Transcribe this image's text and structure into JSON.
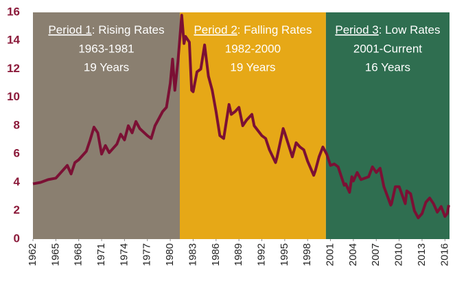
{
  "chart_data": {
    "type": "line",
    "x": [
      1962,
      1963,
      1964,
      1965,
      1966,
      1966.5,
      1967,
      1967.5,
      1968,
      1969,
      1969.5,
      1970,
      1970.5,
      1971,
      1971.5,
      1972,
      1973,
      1973.5,
      1974,
      1974.5,
      1975,
      1975.5,
      1976,
      1977,
      1977.5,
      1978,
      1979,
      1979.5,
      1980,
      1980.3,
      1980.6,
      1981,
      1981.5,
      1981.8,
      1982,
      1982.5,
      1982.8,
      1983,
      1983.5,
      1984,
      1984.5,
      1985,
      1985.5,
      1986,
      1986.5,
      1987,
      1987.7,
      1988,
      1988.5,
      1989,
      1989.5,
      1990,
      1990.7,
      1991,
      1992,
      1992.5,
      1993,
      1993.8,
      1994,
      1994.8,
      1995,
      1996,
      1996.5,
      1997,
      1997.5,
      1998,
      1998.8,
      1999,
      1999.5,
      2000,
      2000.5,
      2001,
      2001.5,
      2002,
      2002.8,
      2003,
      2003.5,
      2003.8,
      2004,
      2004.5,
      2005,
      2006,
      2006.5,
      2007,
      2007.5,
      2008,
      2008.9,
      2009,
      2009.5,
      2010,
      2010.8,
      2011,
      2011.5,
      2012,
      2012.5,
      2013,
      2013.5,
      2014,
      2014.5,
      2015,
      2015.5,
      2016,
      2016.3,
      2016.5
    ],
    "series": [
      {
        "color": "#7b1034",
        "values": [
          3.9,
          4.0,
          4.2,
          4.3,
          4.9,
          5.2,
          4.6,
          5.4,
          5.6,
          6.2,
          7.0,
          7.9,
          7.5,
          6.0,
          6.6,
          6.1,
          6.7,
          7.4,
          7.0,
          8.0,
          7.5,
          8.3,
          7.8,
          7.3,
          7.1,
          8.0,
          9.0,
          9.3,
          11.0,
          12.7,
          10.5,
          12.5,
          15.8,
          13.8,
          14.3,
          13.9,
          10.5,
          10.4,
          11.8,
          12.0,
          13.7,
          11.5,
          10.5,
          9.0,
          7.3,
          7.1,
          9.5,
          8.8,
          9.0,
          9.3,
          8.0,
          8.4,
          8.8,
          8.0,
          7.3,
          7.1,
          6.3,
          5.4,
          5.8,
          7.8,
          7.5,
          5.8,
          6.8,
          6.5,
          6.3,
          5.5,
          4.5,
          4.8,
          5.8,
          6.5,
          6.0,
          5.2,
          5.3,
          5.1,
          3.8,
          3.9,
          3.3,
          4.4,
          4.1,
          4.7,
          4.2,
          4.4,
          5.1,
          4.7,
          5.0,
          3.7,
          2.4,
          2.5,
          3.7,
          3.7,
          2.5,
          3.4,
          3.2,
          2.0,
          1.5,
          1.8,
          2.6,
          2.9,
          2.5,
          1.9,
          2.3,
          1.6,
          1.8,
          2.4
        ]
      }
    ],
    "xlim": [
      1962,
      2016.6
    ],
    "xticks": [
      1962,
      1965,
      1968,
      1971,
      1974,
      1977,
      1980,
      1983,
      1986,
      1989,
      1992,
      1995,
      1998,
      2001,
      2004,
      2007,
      2010,
      2013,
      2016
    ],
    "ylim": [
      0,
      16
    ],
    "yticks": [
      0,
      2,
      4,
      6,
      8,
      10,
      12,
      14,
      16
    ],
    "bands": [
      {
        "x": [
          1962,
          1981.25
        ],
        "color": "#8a7f70",
        "name": "Period 1",
        "desc": ": Rising Rates",
        "range": "1963-1981",
        "duration": "19 Years"
      },
      {
        "x": [
          1981.25,
          2000.4
        ],
        "color": "#e6a817",
        "name": "Period 2",
        "desc": ": Falling Rates",
        "range": "1982-2000",
        "duration": "19 Years"
      },
      {
        "x": [
          2000.4,
          2016.6
        ],
        "color": "#2f6e50",
        "name": "Period 3",
        "desc": ": Low Rates",
        "range": "2001-Current",
        "duration": "16 Years"
      }
    ]
  }
}
